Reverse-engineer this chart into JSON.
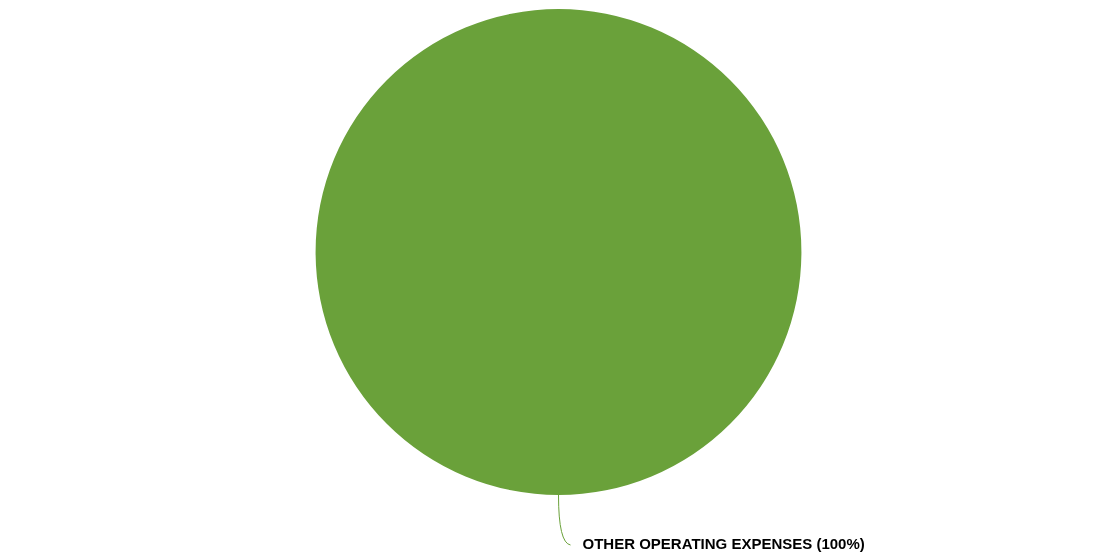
{
  "chart_data": {
    "type": "pie",
    "categories": [
      "OTHER OPERATING EXPENSES"
    ],
    "values": [
      100
    ],
    "colors": [
      "#6aa13a"
    ],
    "value_labels": [
      "(100%)"
    ],
    "legend": false
  }
}
